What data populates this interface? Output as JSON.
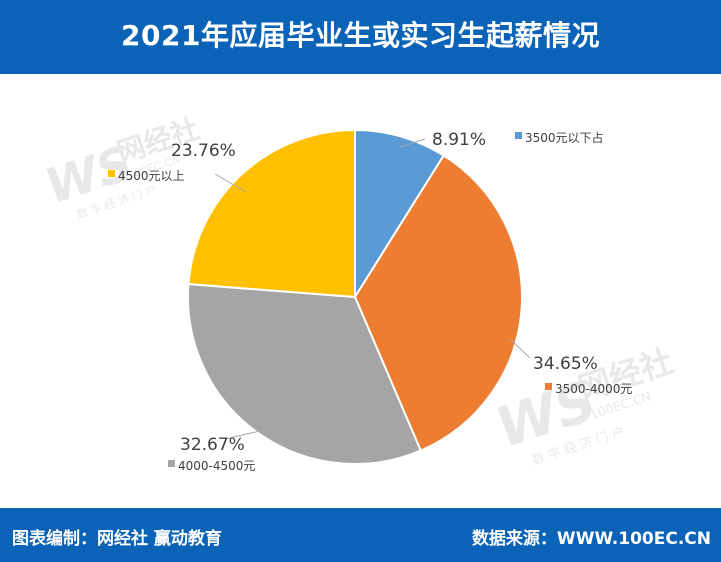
{
  "header": {
    "title": "2021年应届毕业生或实习生起薪情况"
  },
  "footer": {
    "left": "图表编制：网经社  赢动教育",
    "right": "数据来源：WWW.100EC.CN"
  },
  "watermark": {
    "mark": "WS",
    "name": "网经社",
    "url": "100EC.CN",
    "tagline": "数 字 经 济 门 户"
  },
  "colors": {
    "header_bg": "#0a63b6",
    "blue": "#5b9bd5",
    "orange": "#ed7d31",
    "gray": "#a5a5a5",
    "gold": "#ffc000"
  },
  "chart_data": {
    "type": "pie",
    "start_angle_deg": 0,
    "direction": "clockwise",
    "slices": [
      {
        "label": "3500元以下占",
        "value": 8.91,
        "value_label": "8.91%",
        "color": "#5b9bd5"
      },
      {
        "label": "3500-4000元",
        "value": 34.65,
        "value_label": "34.65%",
        "color": "#ed7d31"
      },
      {
        "label": "4000-4500元",
        "value": 32.67,
        "value_label": "32.67%",
        "color": "#a5a5a5"
      },
      {
        "label": "4500元以上",
        "value": 23.76,
        "value_label": "23.76%",
        "color": "#ffc000"
      }
    ]
  }
}
